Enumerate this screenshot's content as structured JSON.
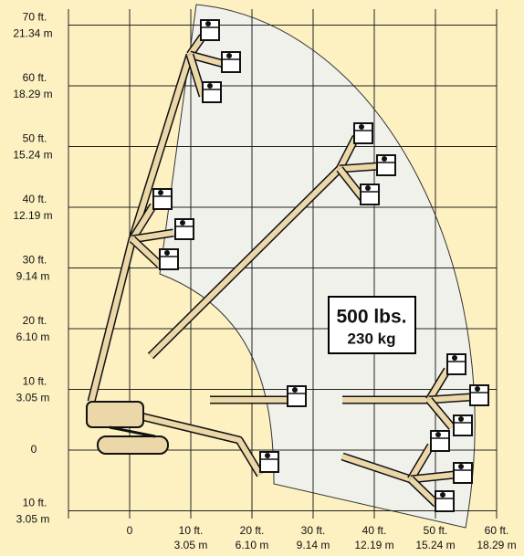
{
  "y_axis": {
    "labels": [
      {
        "ft": "70 ft.",
        "m": "21.34  m"
      },
      {
        "ft": "60 ft.",
        "m": "18.29 m"
      },
      {
        "ft": "50 ft.",
        "m": "15.24 m"
      },
      {
        "ft": "40 ft.",
        "m": "12.19 m"
      },
      {
        "ft": "30 ft.",
        "m": "9.14 m"
      },
      {
        "ft": "20 ft.",
        "m": "6.10 m"
      },
      {
        "ft": "10 ft.",
        "m": "3.05 m"
      },
      {
        "ft": "0"
      },
      {
        "ft": "10 ft.",
        "m": "3.05 m"
      }
    ]
  },
  "x_axis": {
    "labels": [
      {
        "ft": "0"
      },
      {
        "ft": "10 ft.",
        "m": "3.05 m"
      },
      {
        "ft": "20 ft.",
        "m": "6.10 m"
      },
      {
        "ft": "30 ft.",
        "m": "9.14 m"
      },
      {
        "ft": "40 ft.",
        "m": "12.19 m"
      },
      {
        "ft": "50 ft.",
        "m": "15.24 m"
      },
      {
        "ft": "60 ft.",
        "m": "18.29 m"
      }
    ]
  },
  "load_box": {
    "lbs": "500 lbs.",
    "kg": "230 kg"
  }
}
